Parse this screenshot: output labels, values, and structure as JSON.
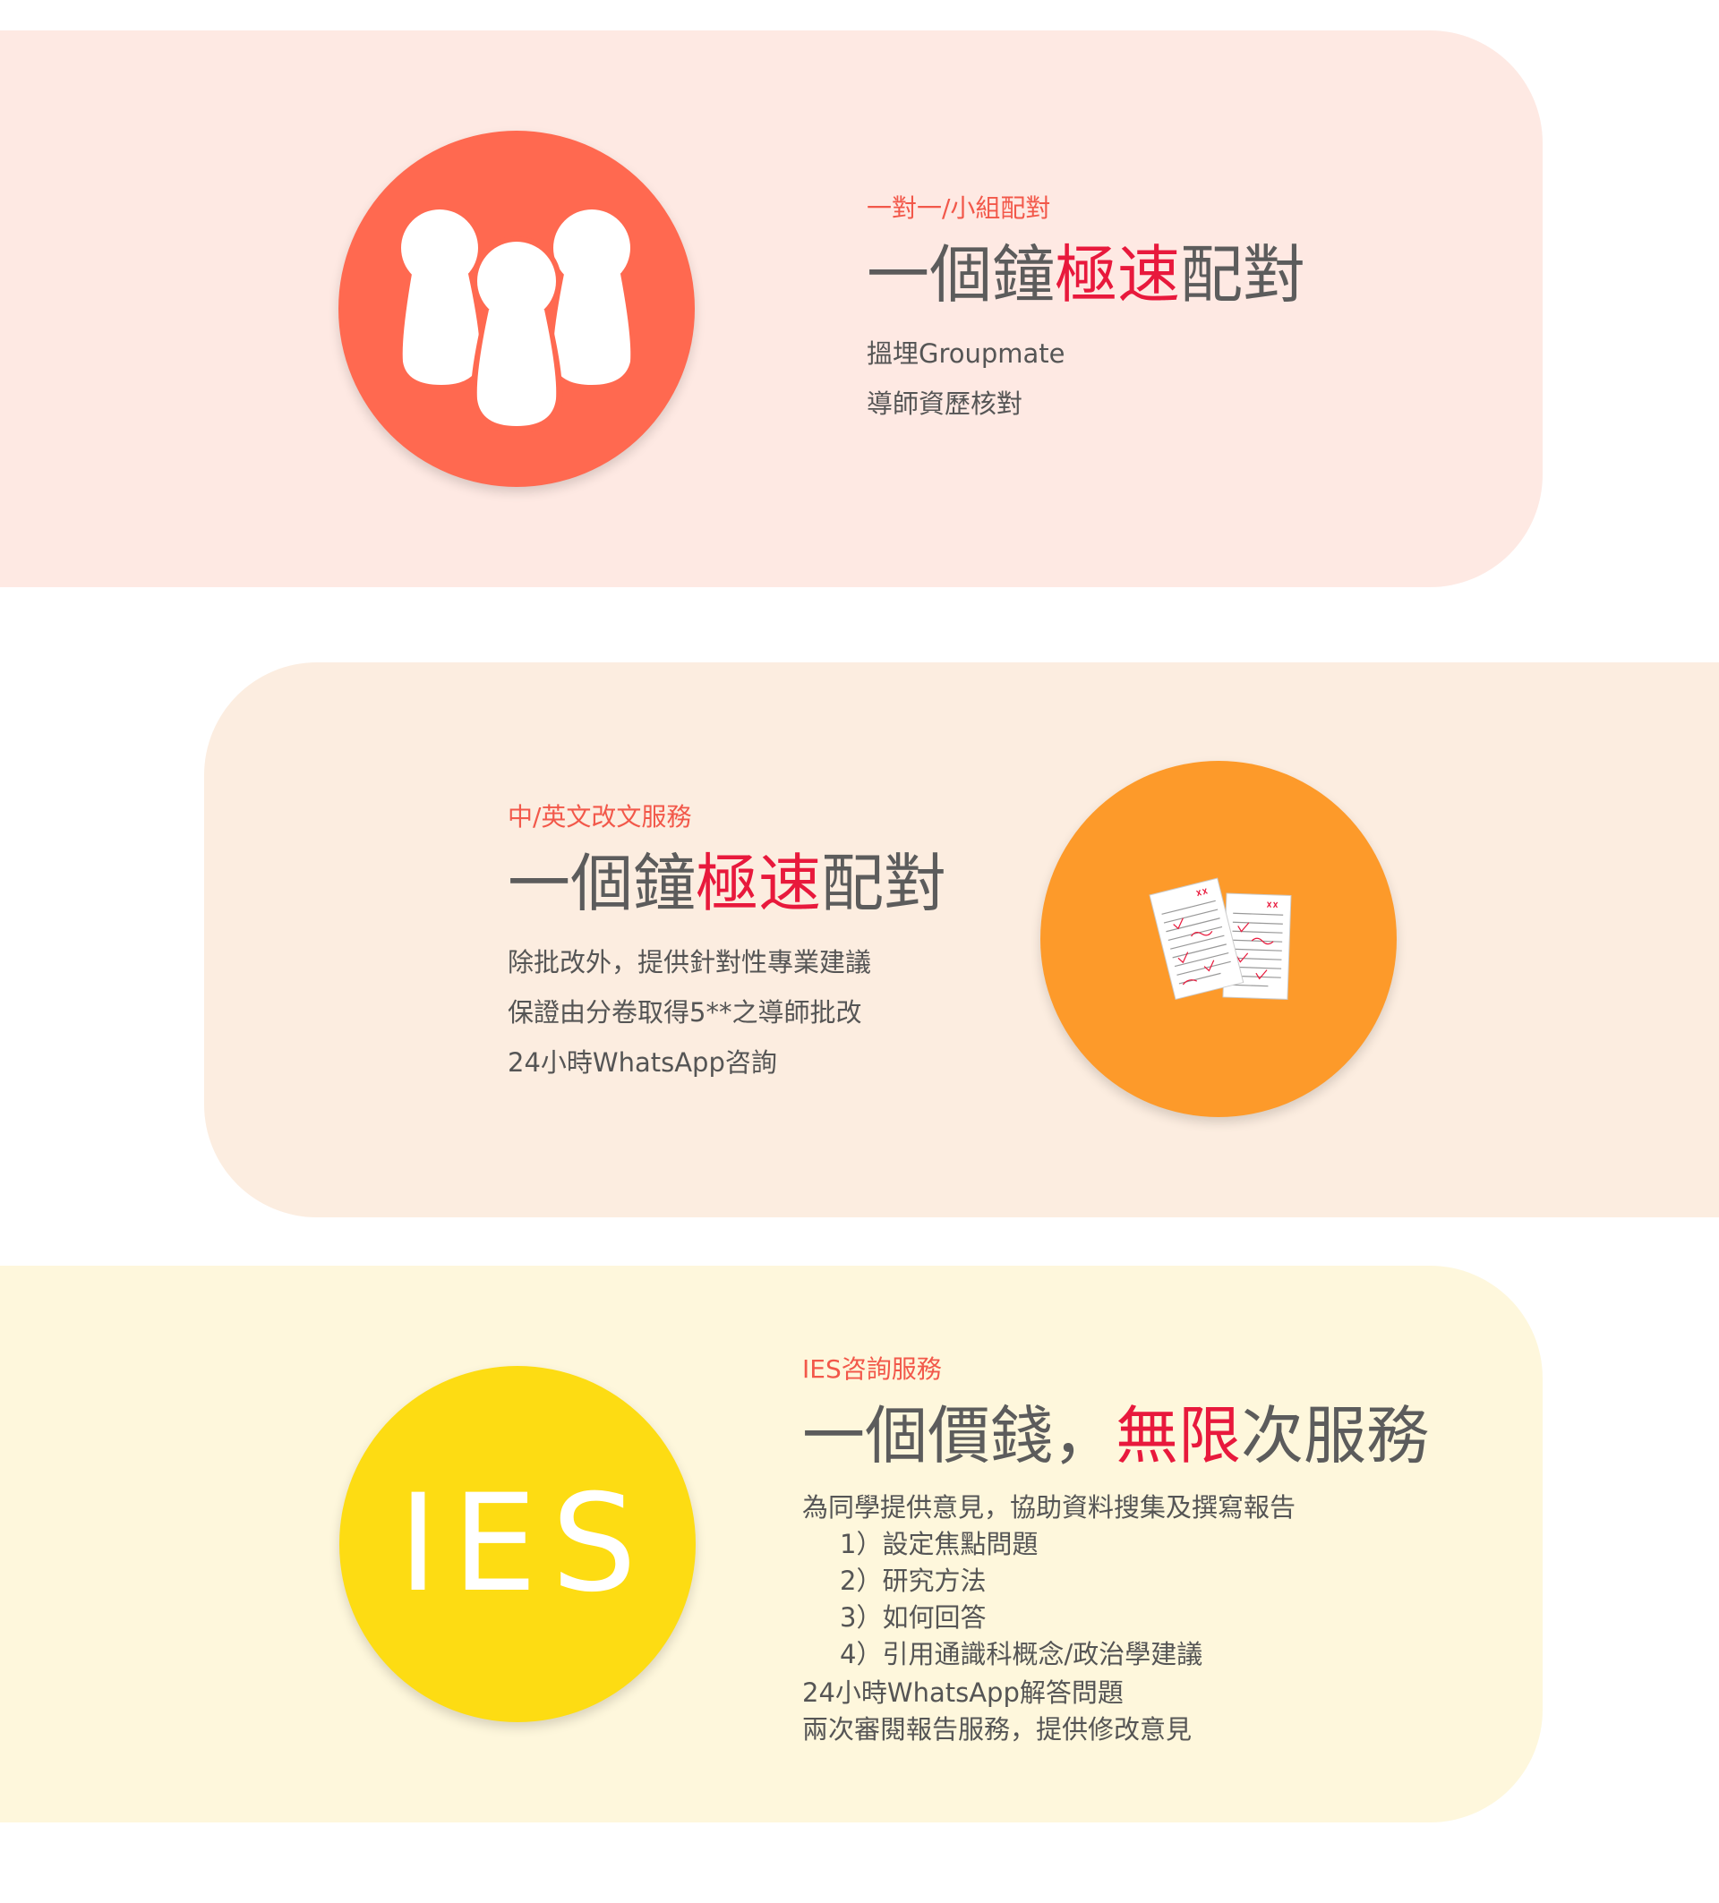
{
  "cards": [
    {
      "eyebrow": "一對一/小組配對",
      "headline": {
        "pre": "一個鐘",
        "highlight": "極速",
        "post": "配對"
      },
      "lines": [
        "搵埋Groupmate",
        "導師資歷核對"
      ],
      "icon": "group-people-icon",
      "color": "#ff6950",
      "background": "#fee9e3"
    },
    {
      "eyebrow": "中/英文改文服務",
      "headline": {
        "pre": "一個鐘",
        "highlight": "極速",
        "post": "配對"
      },
      "lines": [
        "除批改外，提供針對性專業建議",
        "保證由分卷取得5**之導師批改",
        "24小時WhatsApp咨詢"
      ],
      "icon": "marked-papers-icon",
      "color": "#fd9a2a",
      "background": "#fcede0"
    },
    {
      "eyebrow": "IES咨詢服務",
      "headline": {
        "pre": "一個價錢，",
        "highlight": "無限",
        "post": "次服務"
      },
      "intro": "為同學提供意見，協助資料搜集及撰寫報告",
      "sub_items": [
        "1）設定焦點問題",
        "2）研究方法",
        "3）如何回答",
        "4）引用通識科概念/政治學建議"
      ],
      "lines": [
        "24小時WhatsApp解答問題",
        "兩次審閱報告服務，提供修改意見"
      ],
      "icon_text": "IES",
      "color": "#fddc13",
      "background": "#fef7dc"
    }
  ],
  "highlight_color": "#e8193c",
  "eyebrow_color": "#f2584a"
}
